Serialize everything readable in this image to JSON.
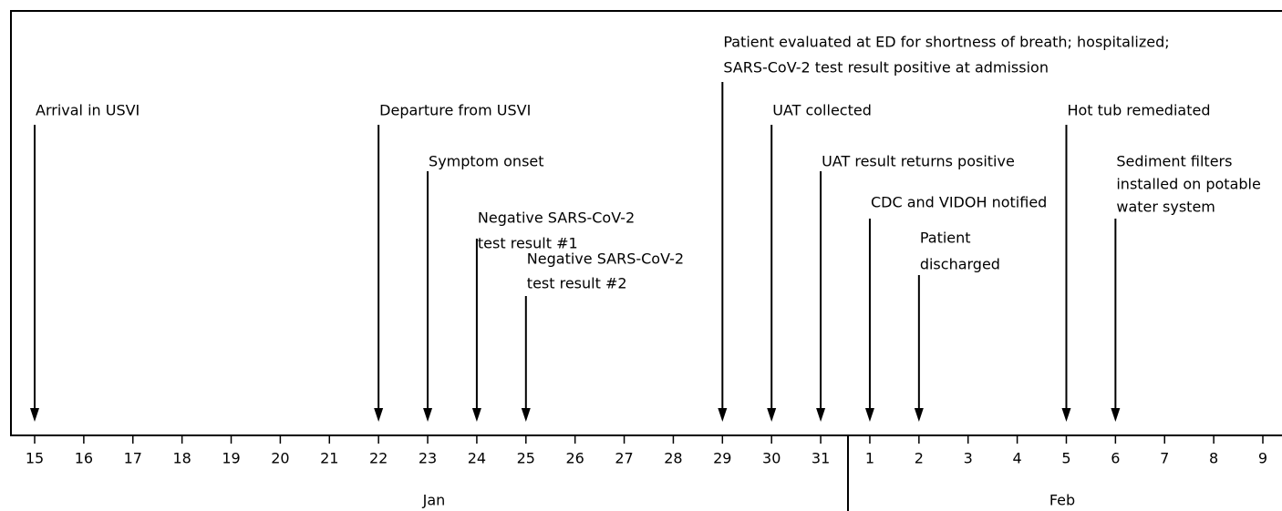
{
  "timeline": {
    "days": [
      "15",
      "16",
      "17",
      "18",
      "19",
      "20",
      "21",
      "22",
      "23",
      "24",
      "25",
      "26",
      "27",
      "28",
      "29",
      "30",
      "31",
      "1",
      "2",
      "3",
      "4",
      "5",
      "6",
      "7",
      "8",
      "9"
    ],
    "months": [
      "Jan",
      "Feb"
    ],
    "events": [
      {
        "lines": [
          "Arrival in USVI"
        ]
      },
      {
        "lines": [
          "Departure from USVI"
        ]
      },
      {
        "lines": [
          "Symptom onset"
        ]
      },
      {
        "lines": [
          "Negative SARS-CoV-2",
          "test result #1"
        ]
      },
      {
        "lines": [
          "Negative SARS-CoV-2",
          "test result #2"
        ]
      },
      {
        "lines": [
          "Patient evaluated at ED for shortness of breath; hospitalized;",
          "SARS-CoV-2 test result positive at admission"
        ]
      },
      {
        "lines": [
          "UAT collected"
        ]
      },
      {
        "lines": [
          "UAT result returns positive"
        ]
      },
      {
        "lines": [
          "CDC and VIDOH notified"
        ]
      },
      {
        "lines": [
          "Patient",
          "discharged"
        ]
      },
      {
        "lines": [
          "Hot tub remediated"
        ]
      },
      {
        "lines": [
          "Sediment filters",
          "installed on potable",
          "water system"
        ]
      }
    ]
  }
}
